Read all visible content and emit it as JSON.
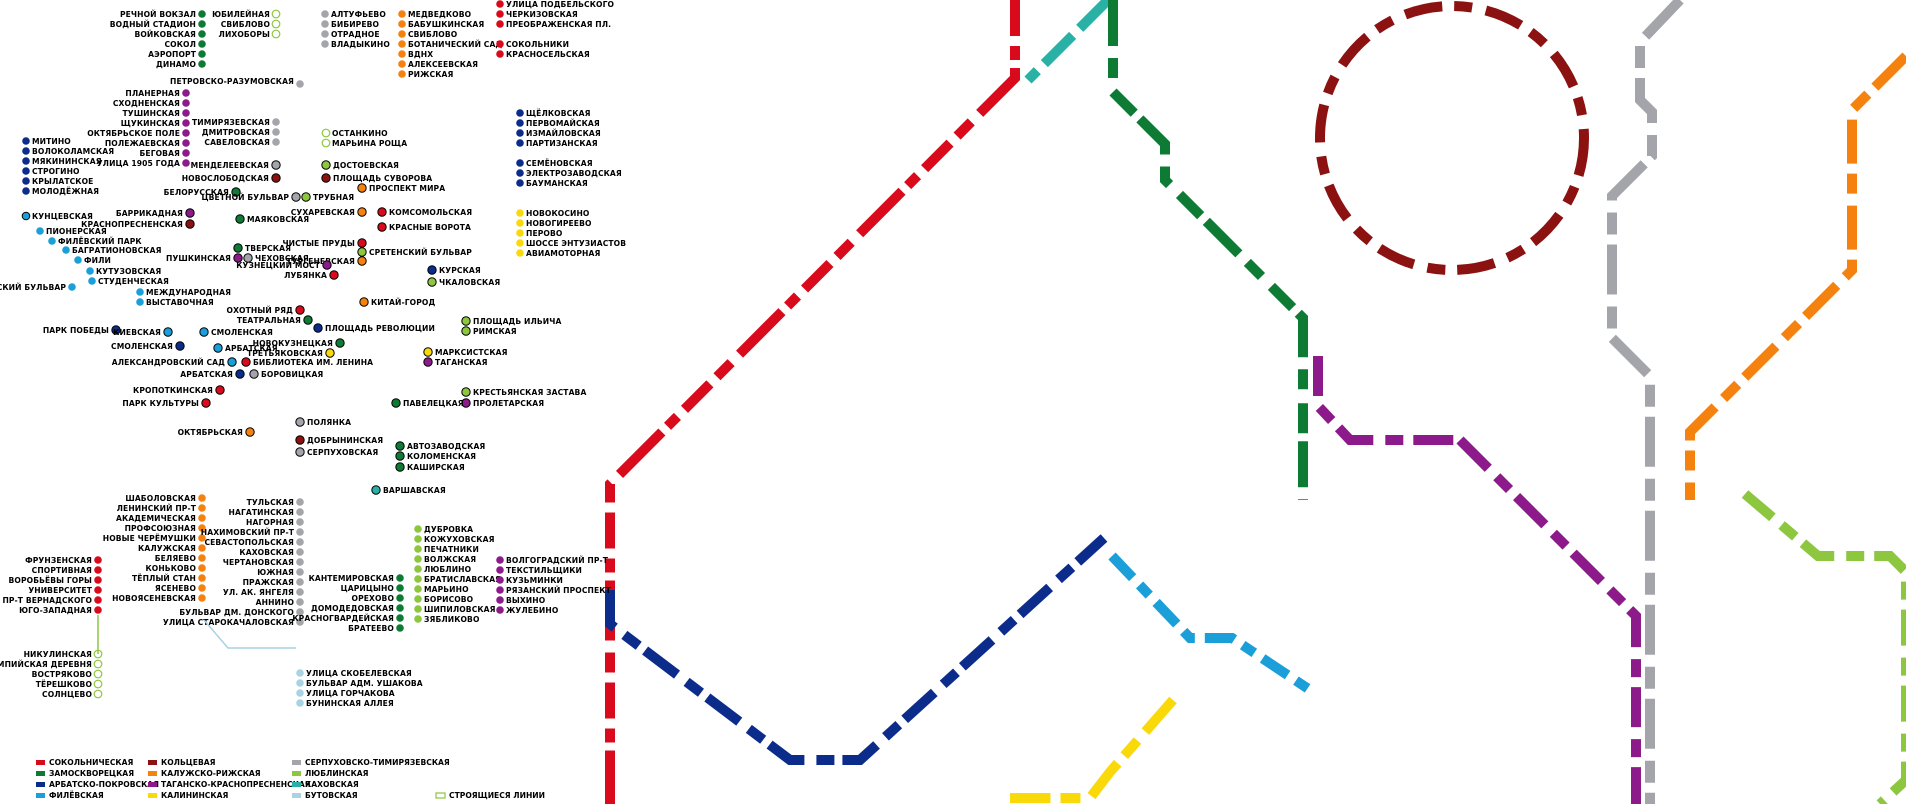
{
  "lines": {
    "sokolnicheskaya": {
      "name": "СОКОЛЬНИЧЕСКАЯ",
      "color": "#d80a1c"
    },
    "zamoskvoretskaya": {
      "name": "ЗАМОСКВОРЕЦКАЯ",
      "color": "#0d7b34"
    },
    "arbatsko_pokrovskaya": {
      "name": "АРБАТСКО-ПОКРОВСКАЯ",
      "color": "#0c2c8c"
    },
    "filyovskaya": {
      "name": "ФИЛЁВСКАЯ",
      "color": "#1b9fd8"
    },
    "koltsevaya": {
      "name": "КОЛЬЦЕВАЯ",
      "color": "#8c1212"
    },
    "kaluzhsko_rizhskaya": {
      "name": "КАЛУЖСКО-РИЖСКАЯ",
      "color": "#f5820f"
    },
    "tagansko_krasnopresnenskaya": {
      "name": "ТАГАНСКО-КРАСНОПРЕСНЕНСКАЯ",
      "color": "#8c1a8a"
    },
    "kalininskaya": {
      "name": "КАЛИНИНСКАЯ",
      "color": "#f9d90a"
    },
    "serpukhovsko_timiryazevskaya": {
      "name": "СЕРПУХОВСКО-ТИМИРЯЗЕВСКАЯ",
      "color": "#a3a5ab"
    },
    "lyublinskaya": {
      "name": "ЛЮБЛИНСКАЯ",
      "color": "#8dc63f"
    },
    "kakhovskaya": {
      "name": "КАХОВСКАЯ",
      "color": "#29b1a6"
    },
    "butovskaya": {
      "name": "БУТОВСКАЯ",
      "color": "#a9d2e3"
    },
    "under_construction": {
      "name": "СТРОЯЩИЕСЯ ЛИНИИ",
      "color": "#8dc63f"
    }
  },
  "legend": [
    {
      "key": "sokolnicheskaya",
      "text": "СОКОЛЬНИЧЕСКАЯ"
    },
    {
      "key": "zamoskvoretskaya",
      "text": "ЗАМОСКВОРЕЦКАЯ"
    },
    {
      "key": "arbatsko_pokrovskaya",
      "text": "АРБАТСКО-ПОКРОВСКАЯ"
    },
    {
      "key": "filyovskaya",
      "text": "ФИЛЁВСКАЯ"
    },
    {
      "key": "koltsevaya",
      "text": "КОЛЬЦЕВАЯ"
    },
    {
      "key": "kaluzhsko_rizhskaya",
      "text": "КАЛУЖСКО-РИЖСКАЯ"
    },
    {
      "key": "tagansko_krasnopresnenskaya",
      "text": "ТАГАНСКО-КРАСНОПРЕСНЕНСКАЯ"
    },
    {
      "key": "kalininskaya",
      "text": "КАЛИНИНСКАЯ"
    },
    {
      "key": "serpukhovsko_timiryazevskaya",
      "text": "СЕРПУХОВСКО-ТИМИРЯЗЕВСКАЯ"
    },
    {
      "key": "lyublinskaya",
      "text": "ЛЮБЛИНСКАЯ"
    },
    {
      "key": "kakhovskaya",
      "text": "КАХОВСКАЯ"
    },
    {
      "key": "butovskaya",
      "text": "БУТОВСКАЯ"
    },
    {
      "key": "under_construction",
      "text": "СТРОЯЩИЕСЯ ЛИНИИ"
    }
  ],
  "stations": {
    "zamoskvoretskaya_north": [
      "РЕЧНОЙ ВОКЗАЛ",
      "ВОДНЫЙ СТАДИОН",
      "ВОЙКОВСКАЯ",
      "СОКОЛ",
      "АЭРОПОРТ",
      "ДИНАМО"
    ],
    "lyublinskaya_north": [
      "ЮБИЛЕЙНАЯ",
      "СВИБЛОВО",
      "ЛИХОБОРЫ"
    ],
    "serpukhovskaya_north": [
      "АЛТУФЬЕВО",
      "БИБИРЕВО",
      "ОТРАДНОЕ",
      "ВЛАДЫКИНО"
    ],
    "kaluzhsko_rizhskaya_north": [
      "МЕДВЕДКОВО",
      "БАБУШКИНСКАЯ",
      "СВИБЛОВО",
      "БОТАНИЧЕСКИЙ САД",
      "ВДНХ",
      "АЛЕКСЕЕВСКАЯ",
      "РИЖСКАЯ"
    ],
    "sokolnicheskaya_north": [
      "УЛИЦА ПОДБЕЛЬСКОГО",
      "ЧЕРКИЗОВСКАЯ",
      "ПРЕОБРАЖЕНСКАЯ ПЛ."
    ],
    "sokolnicheskaya_mid": [
      "СОКОЛЬНИКИ",
      "КРАСНОСЕЛЬСКАЯ"
    ],
    "petrovsko": "ПЕТРОВСКО-РАЗУМОВСКАЯ",
    "tagansko_north": [
      "ПЛАНЕРНАЯ",
      "СХОДНЕНСКАЯ",
      "ТУШИНСКАЯ",
      "ЩУКИНСКАЯ",
      "ОКТЯБРЬСКОЕ ПОЛЕ",
      "ПОЛЕЖАЕВСКАЯ",
      "БЕГОВАЯ",
      "УЛИЦА 1905 ГОДА"
    ],
    "serpukhovskaya_mid": [
      "ТИМИРЯЗЕВСКАЯ",
      "ДМИТРОВСКАЯ",
      "САВЕЛОВСКАЯ"
    ],
    "lyublinskaya_mid": [
      "ОСТАНКИНО",
      "МАРЬИНА РОЩА"
    ],
    "arbatsko_east": [
      "ЩЁЛКОВСКАЯ",
      "ПЕРВОМАЙСКАЯ",
      "ИЗМАЙЛОВСКАЯ",
      "ПАРТИЗАНСКАЯ"
    ],
    "arbatsko_east2": [
      "СЕМЁНОВСКАЯ",
      "ЭЛЕКТРОЗАВОДСКАЯ",
      "БАУМАНСКАЯ"
    ],
    "arbatsko_west": [
      "МИТИНО",
      "ВОЛОКОЛАМСКАЯ",
      "МЯКИНИНСКАЯ",
      "СТРОГИНО",
      "КРЫЛАТСКОЕ",
      "МОЛОДЁЖНАЯ"
    ],
    "centre_a": [
      "МЕНДЕЛЕЕВСКАЯ",
      "НОВОСЛОБОДСКАЯ",
      "ДОСТОЕВСКАЯ",
      "ПЛОЩАДЬ СУВОРОВА",
      "ПРОСПЕКТ МИРА",
      "БЕЛОРУССКАЯ",
      "ЦВЕТНОЙ БУЛЬВАР",
      "ТРУБНАЯ",
      "СУХАРЕВСКАЯ",
      "КОМСОМОЛЬСКАЯ",
      "КРАСНЫЕ ВОРОТА",
      "БАРРИКАДНАЯ",
      "КРАСНОПРЕСНЕНСКАЯ",
      "МАЯКОВСКАЯ",
      "ЧИСТЫЕ ПРУДЫ",
      "СРЕТЕНСКИЙ БУЛЬВАР",
      "ТУРГЕНЕВСКАЯ",
      "ТВЕРСКАЯ",
      "ПУШКИНСКАЯ",
      "ЧЕХОВСКАЯ",
      "КУЗНЕЦКИЙ МОСТ",
      "ЛУБЯНКА",
      "КУРСКАЯ",
      "ЧКАЛОВСКАЯ"
    ],
    "kalininskaya_list": [
      "НОВОКОСИНО",
      "НОВОГИРЕЕВО",
      "ПЕРОВО",
      "ШОССЕ ЭНТУЗИАСТОВ",
      "АВИАМОТОРНАЯ"
    ],
    "filyovskaya_list": [
      "КУНЦЕВСКАЯ",
      "ПИОНЕРСКАЯ",
      "ФИЛЁВСКИЙ ПАРК",
      "БАГРАТИОНОВСКАЯ",
      "ФИЛИ",
      "КУТУЗОВСКАЯ",
      "СТУДЕНЧЕСКАЯ",
      "СЛАВЯНСКИЙ БУЛЬВАР",
      "МЕЖДУНАРОДНАЯ",
      "ВЫСТАВОЧНАЯ"
    ],
    "centre_b": [
      "КИТАЙ-ГОРОД",
      "ОХОТНЫЙ РЯД",
      "ТЕАТРАЛЬНАЯ",
      "ПЛОЩАДЬ РЕВОЛЮЦИИ",
      "ПАРК ПОБЕДЫ",
      "КИЕВСКАЯ",
      "СМОЛЕНСКАЯ",
      "СМОЛЕНСКАЯ",
      "АРБАТСКАЯ",
      "ПЛОЩАДЬ ИЛЬИЧА",
      "РИМСКАЯ",
      "НОВОКУЗНЕЦКАЯ",
      "ТРЕТЬЯКОВСКАЯ",
      "МАРКСИСТСКАЯ",
      "ТАГАНСКАЯ",
      "АЛЕКСАНДРОВСКИЙ САД",
      "БИБЛИОТЕКА ИМ. ЛЕНИНА",
      "АРБАТСКАЯ",
      "БОРОВИЦКАЯ",
      "КРОПОТКИНСКАЯ",
      "КРЕСТЬЯНСКАЯ ЗАСТАВА",
      "ПРОЛЕТАРСКАЯ",
      "ПАРК КУЛЬТУРЫ",
      "ПАВЕЛЕЦКАЯ",
      "ПОЛЯНКА",
      "ОКТЯБРЬСКАЯ",
      "ДОБРЫНИНСКАЯ",
      "СЕРПУХОВСКАЯ",
      "АВТОЗАВОДСКАЯ",
      "КОЛОМЕНСКАЯ",
      "КАШИРСКАЯ",
      "ВАРШАВСКАЯ"
    ],
    "kaluzhsko_south": [
      "ШАБОЛОВСКАЯ",
      "ЛЕНИНСКИЙ ПР-Т",
      "АКАДЕМИЧЕСКАЯ",
      "ПРОФСОЮЗНАЯ",
      "НОВЫЕ ЧЕРЁМУШКИ",
      "КАЛУЖСКАЯ",
      "БЕЛЯЕВО",
      "КОНЬКОВО",
      "ТЁПЛЫЙ СТАН",
      "ЯСЕНЕВО",
      "НОВОЯСЕНЕВСКАЯ"
    ],
    "serpukhovskaya_south": [
      "ТУЛЬСКАЯ",
      "НАГАТИНСКАЯ",
      "НАГОРНАЯ",
      "НАХИМОВСКИЙ ПР-Т",
      "СЕВАСТОПОЛЬСКАЯ",
      "КАХОВСКАЯ",
      "ЧЕРТАНОВСКАЯ",
      "ЮЖНАЯ",
      "ПРАЖСКАЯ",
      "УЛ. АК. ЯНГЕЛЯ",
      "АННИНО",
      "БУЛЬВАР ДМ. ДОНСКОГО",
      "УЛИЦА СТАРОКАЧАЛОВСКАЯ"
    ],
    "butovskaya_list": [
      "УЛИЦА СКОБЕЛЕВСКАЯ",
      "БУЛЬВАР АДМ. УШАКОВА",
      "УЛИЦА ГОРЧАКОВА",
      "БУНИНСКАЯ АЛЛЕЯ"
    ],
    "sokolnicheskaya_south": [
      "ФРУНЗЕНСКАЯ",
      "СПОРТИВНАЯ",
      "ВОРОБЬЁВЫ ГОРЫ",
      "УНИВЕРСИТЕТ",
      "ПР-Т ВЕРНАДСКОГО",
      "ЮГО-ЗАПАДНАЯ"
    ],
    "construction_south": [
      "НИКУЛИНСКАЯ",
      "ОЛИМПИЙСКАЯ ДЕРЕВНЯ",
      "ВОСТРЯКОВО",
      "ТЁРЕШКОВО",
      "СОЛНЦЕВО"
    ],
    "zamoskvoretskaya_south": [
      "КАНТЕМИРОВСКАЯ",
      "ЦАРИЦЫНО",
      "ОРЕХОВО",
      "ДОМОДЕДОВСКАЯ",
      "КРАСНОГВАРДЕЙСКАЯ",
      "БРАТЕЕВО"
    ],
    "lyublinskaya_south": [
      "ДУБРОВКА",
      "КОЖУХОВСКАЯ",
      "ПЕЧАТНИКИ",
      "ВОЛЖСКАЯ",
      "ЛЮБЛИНО",
      "БРАТИСЛАВСКАЯ",
      "МАРЬИНО",
      "БОРИСОВО",
      "ШИПИЛОВСКАЯ",
      "ЗЯБЛИКОВО"
    ],
    "tagansko_south": [
      "ВОЛГОГРАДСКИЙ ПР-Т",
      "ТЕКСТИЛЬЩИКИ",
      "КУЗЬМИНКИ",
      "РЯЗАНСКИЙ ПРОСПЕКТ",
      "ВЫХИНО",
      "ЖУЛЕБИНО"
    ]
  }
}
